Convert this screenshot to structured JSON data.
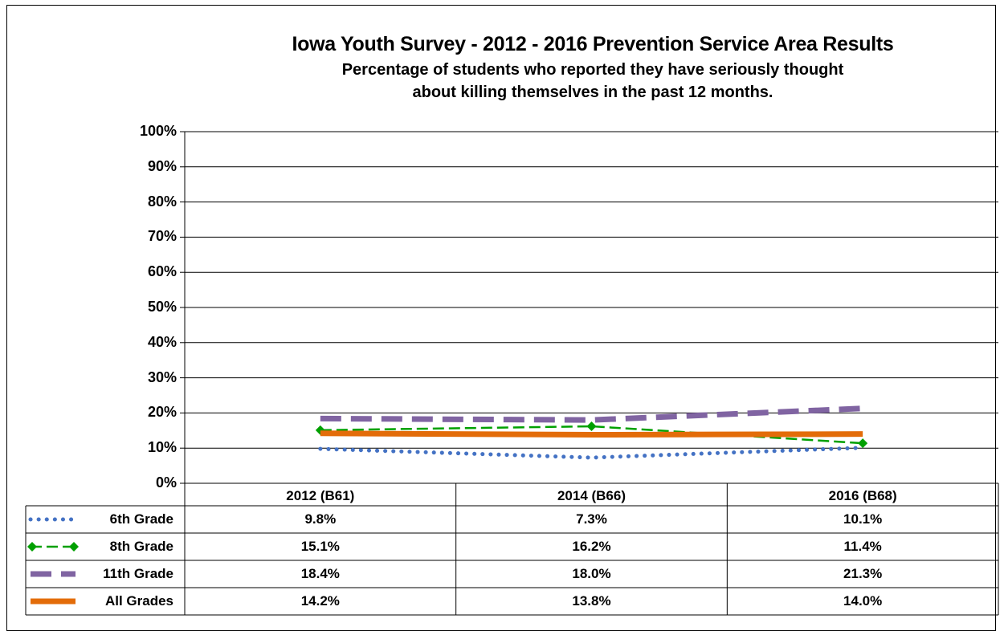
{
  "title": "Iowa Youth Survey - 2012 - 2016 Prevention Service Area Results",
  "subtitle_line1": "Percentage of students who reported they have seriously thought",
  "subtitle_line2": "about killing themselves in the past 12 months.",
  "chart_data": {
    "type": "line",
    "title": "Iowa Youth Survey - 2012 - 2016 Prevention Service Area Results",
    "subtitle": "Percentage of students who reported they have seriously thought about killing themselves in the past 12 months.",
    "categories": [
      "2012 (B61)",
      "2014 (B66)",
      "2016 (B68)"
    ],
    "ylim": [
      0,
      100
    ],
    "yticks": [
      "0%",
      "10%",
      "20%",
      "30%",
      "40%",
      "50%",
      "60%",
      "70%",
      "80%",
      "90%",
      "100%"
    ],
    "grid": true,
    "legend": "data-table",
    "series": [
      {
        "name": "6th Grade",
        "values": [
          9.8,
          7.3,
          10.1
        ],
        "labels": [
          "9.8%",
          "7.3%",
          "10.1%"
        ],
        "color": "#4472c4",
        "style": "dotted"
      },
      {
        "name": "8th Grade",
        "values": [
          15.1,
          16.2,
          11.4
        ],
        "labels": [
          "15.1%",
          "16.2%",
          "11.4%"
        ],
        "color": "#00a000",
        "style": "dashed-diamond"
      },
      {
        "name": "11th Grade",
        "values": [
          18.4,
          18.0,
          21.3
        ],
        "labels": [
          "18.4%",
          "18.0%",
          "21.3%"
        ],
        "color": "#8064a2",
        "style": "long-dash"
      },
      {
        "name": "All Grades",
        "values": [
          14.2,
          13.8,
          14.0
        ],
        "labels": [
          "14.2%",
          "13.8%",
          "14.0%"
        ],
        "color": "#e36c09",
        "style": "solid"
      }
    ]
  }
}
